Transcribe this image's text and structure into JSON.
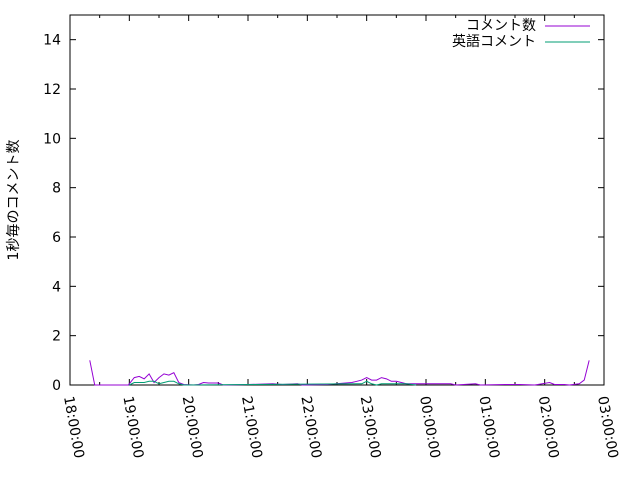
{
  "chart_data": {
    "type": "line",
    "title": "",
    "xlabel": "",
    "ylabel": "1秒毎のコメント数",
    "xlim": [
      "18:00:00",
      "03:00:00"
    ],
    "ylim": [
      0,
      15
    ],
    "x_ticks": [
      "18:00:00",
      "19:00:00",
      "20:00:00",
      "21:00:00",
      "22:00:00",
      "23:00:00",
      "00:00:00",
      "01:00:00",
      "02:00:00",
      "03:00:00"
    ],
    "y_ticks": [
      "0",
      "2",
      "4",
      "6",
      "8",
      "10",
      "12",
      "14"
    ],
    "grid": false,
    "legend_position": "top-right",
    "series": [
      {
        "name": "コメント数",
        "color": "#9400d3",
        "points": [
          [
            "18:20",
            1.0
          ],
          [
            "18:25",
            0
          ],
          [
            "18:59",
            0
          ],
          [
            "19:05",
            0.3
          ],
          [
            "19:10",
            0.35
          ],
          [
            "19:15",
            0.25
          ],
          [
            "19:20",
            0.45
          ],
          [
            "19:25",
            0.1
          ],
          [
            "19:30",
            0.3
          ],
          [
            "19:35",
            0.45
          ],
          [
            "19:40",
            0.4
          ],
          [
            "19:45",
            0.5
          ],
          [
            "19:50",
            0.1
          ],
          [
            "19:55",
            0.02
          ],
          [
            "20:05",
            0
          ],
          [
            "20:10",
            0.02
          ],
          [
            "20:15",
            0.1
          ],
          [
            "20:20",
            0.08
          ],
          [
            "20:30",
            0.08
          ],
          [
            "20:35",
            0
          ],
          [
            "21:00",
            0.02
          ],
          [
            "21:25",
            0.05
          ],
          [
            "21:35",
            0.02
          ],
          [
            "21:50",
            0.05
          ],
          [
            "21:55",
            0
          ],
          [
            "22:20",
            0.02
          ],
          [
            "22:45",
            0.1
          ],
          [
            "22:50",
            0.15
          ],
          [
            "22:55",
            0.2
          ],
          [
            "23:00",
            0.3
          ],
          [
            "23:05",
            0.2
          ],
          [
            "23:10",
            0.2
          ],
          [
            "23:15",
            0.3
          ],
          [
            "23:20",
            0.25
          ],
          [
            "23:25",
            0.15
          ],
          [
            "23:30",
            0.15
          ],
          [
            "23:35",
            0.1
          ],
          [
            "23:40",
            0.05
          ],
          [
            "23:55",
            0.05
          ],
          [
            "00:10",
            0.05
          ],
          [
            "00:25",
            0.05
          ],
          [
            "00:30",
            0
          ],
          [
            "00:50",
            0.05
          ],
          [
            "00:55",
            0
          ],
          [
            "01:20",
            0.02
          ],
          [
            "01:35",
            0.02
          ],
          [
            "01:50",
            0
          ],
          [
            "02:05",
            0.1
          ],
          [
            "02:10",
            0.02
          ],
          [
            "02:20",
            0.02
          ],
          [
            "02:25",
            0
          ],
          [
            "02:35",
            0.05
          ],
          [
            "02:40",
            0.2
          ],
          [
            "02:45",
            1.0
          ]
        ]
      },
      {
        "name": "英語コメント",
        "color": "#009e73",
        "points": [
          [
            "19:00",
            0
          ],
          [
            "19:05",
            0.1
          ],
          [
            "19:10",
            0.1
          ],
          [
            "19:15",
            0.1
          ],
          [
            "19:20",
            0.15
          ],
          [
            "19:25",
            0.15
          ],
          [
            "19:30",
            0.05
          ],
          [
            "19:35",
            0.1
          ],
          [
            "19:40",
            0.15
          ],
          [
            "19:45",
            0.15
          ],
          [
            "19:50",
            0.05
          ],
          [
            "19:55",
            0
          ],
          [
            "22:50",
            0.05
          ],
          [
            "22:55",
            0.05
          ],
          [
            "23:00",
            0.15
          ],
          [
            "23:05",
            0.05
          ],
          [
            "23:10",
            0
          ],
          [
            "23:15",
            0.05
          ],
          [
            "23:40",
            0.05
          ],
          [
            "23:50",
            0
          ]
        ]
      }
    ]
  }
}
